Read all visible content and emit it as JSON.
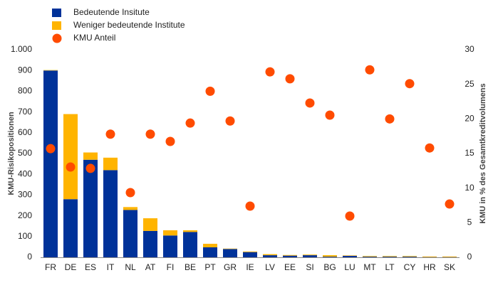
{
  "chart_data": {
    "type": "bar",
    "y_label": "KMU-Risikopositionen",
    "y2_label": "KMU in % des Gesamtkreditvolumens",
    "categories": [
      "FR",
      "DE",
      "ES",
      "IT",
      "NL",
      "AT",
      "FI",
      "BE",
      "PT",
      "GR",
      "IE",
      "LV",
      "EE",
      "SI",
      "BG",
      "LU",
      "MT",
      "LT",
      "CY",
      "HR",
      "SK"
    ],
    "series": [
      {
        "name": "Bedeutende Insitute",
        "color": "#003299",
        "type": "bar",
        "values": [
          900,
          280,
          470,
          420,
          228,
          127,
          105,
          122,
          48,
          40,
          25,
          10,
          8,
          10,
          3,
          7,
          3,
          3,
          3,
          1,
          1
        ]
      },
      {
        "name": "Weniger bedeutende Institute",
        "color": "#ffb400",
        "type": "bar",
        "values": [
          2,
          410,
          35,
          60,
          14,
          61,
          25,
          8,
          17,
          2,
          3,
          5,
          3,
          3,
          7,
          2,
          3,
          3,
          3,
          3,
          3
        ]
      },
      {
        "name": "KMU Anteil",
        "color": "#ff4b00",
        "type": "scatter",
        "axis": "y2",
        "values": [
          15.7,
          13.05,
          12.85,
          17.8,
          9.35,
          17.8,
          16.75,
          19.4,
          24.0,
          19.7,
          7.4,
          26.8,
          25.8,
          22.3,
          20.55,
          5.96,
          27.1,
          20.0,
          25.1,
          15.8,
          7.7
        ]
      }
    ],
    "ylim": [
      0,
      1000
    ],
    "yticks": [
      0,
      100,
      200,
      300,
      400,
      500,
      600,
      700,
      800,
      900,
      {
        "value": 1000,
        "label": "1.000"
      }
    ],
    "y2lim": [
      0,
      30
    ],
    "y2ticks": [
      0,
      5,
      10,
      15,
      20,
      25,
      30
    ],
    "grid": false,
    "legend": "top-left"
  }
}
